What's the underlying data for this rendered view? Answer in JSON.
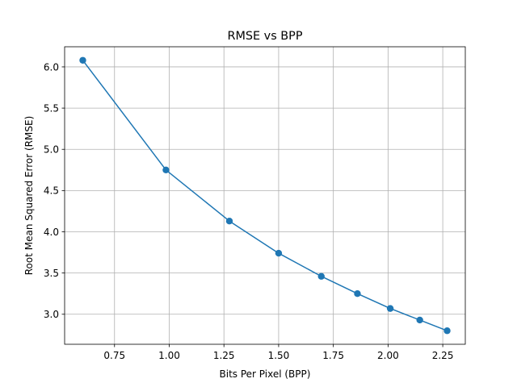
{
  "chart_data": {
    "type": "line",
    "title": "RMSE vs BPP",
    "xlabel": "Bits Per Pixel (BPP)",
    "ylabel": "Root Mean Squared Error (RMSE)",
    "x": [
      0.605,
      0.985,
      1.275,
      1.5,
      1.695,
      1.86,
      2.01,
      2.145,
      2.27
    ],
    "series": [
      {
        "values": [
          6.08,
          4.75,
          4.13,
          3.74,
          3.46,
          3.25,
          3.07,
          2.93,
          2.8
        ],
        "color": "#1f77b4",
        "marker": "circle"
      }
    ],
    "xlim": [
      0.522,
      2.353
    ],
    "ylim": [
      2.636,
      6.244
    ],
    "xticks": [
      0.75,
      1.0,
      1.25,
      1.5,
      1.75,
      2.0,
      2.25
    ],
    "xtick_labels": [
      "0.75",
      "1.00",
      "1.25",
      "1.50",
      "1.75",
      "2.00",
      "2.25"
    ],
    "yticks": [
      3.0,
      3.5,
      4.0,
      4.5,
      5.0,
      5.5,
      6.0
    ],
    "ytick_labels": [
      "3.0",
      "3.5",
      "4.0",
      "4.5",
      "5.0",
      "5.5",
      "6.0"
    ],
    "grid": true,
    "legend": "none"
  }
}
